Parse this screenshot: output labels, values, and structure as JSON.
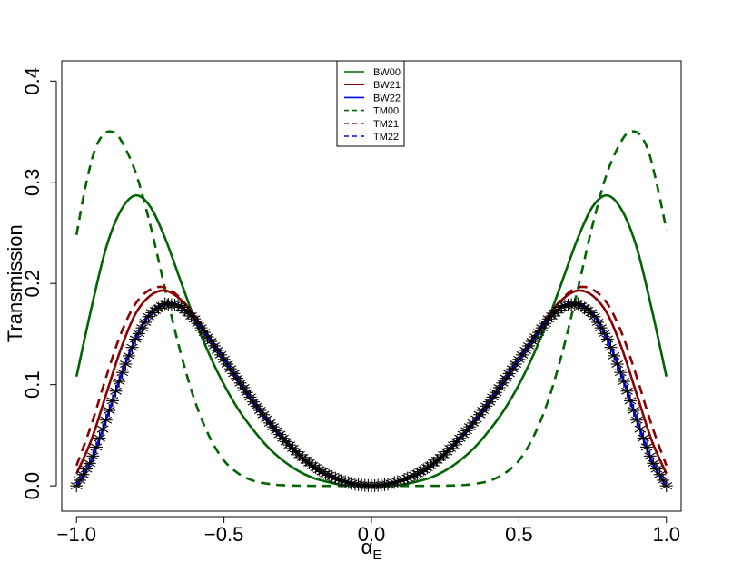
{
  "chart_data": {
    "type": "line",
    "title": "",
    "xlabel": "α",
    "xlabel_subscript": "E",
    "ylabel": "Transmission",
    "xlim": [
      -1.05,
      1.05
    ],
    "ylim": [
      -0.025,
      0.42
    ],
    "x_ticks": [
      -1.0,
      -0.5,
      0.0,
      0.5,
      1.0
    ],
    "x_tick_labels": [
      "−1.0",
      "−0.5",
      "0.0",
      "0.5",
      "1.0"
    ],
    "y_ticks": [
      0.0,
      0.1,
      0.2,
      0.3,
      0.4
    ],
    "y_tick_labels": [
      "0.0",
      "0.1",
      "0.2",
      "0.3",
      "0.4"
    ],
    "grid": false,
    "legend_position": "top-center",
    "x_domain": [
      -1.0,
      1.0
    ],
    "series": [
      {
        "name": "BW00",
        "color": "#006400",
        "dash": "solid",
        "points": [
          [
            -1.0,
            0.108
          ],
          [
            -0.95,
            0.175
          ],
          [
            -0.9,
            0.235
          ],
          [
            -0.85,
            0.272
          ],
          [
            -0.8,
            0.287
          ],
          [
            -0.75,
            0.276
          ],
          [
            -0.7,
            0.245
          ],
          [
            -0.65,
            0.205
          ],
          [
            -0.6,
            0.165
          ],
          [
            -0.55,
            0.13
          ],
          [
            -0.5,
            0.1
          ],
          [
            -0.45,
            0.075
          ],
          [
            -0.4,
            0.055
          ],
          [
            -0.35,
            0.038
          ],
          [
            -0.3,
            0.025
          ],
          [
            -0.25,
            0.015
          ],
          [
            -0.2,
            0.008
          ],
          [
            -0.15,
            0.004
          ],
          [
            -0.1,
            0.001
          ],
          [
            -0.05,
            0.0003
          ],
          [
            0.0,
            0.0
          ],
          [
            0.05,
            0.0003
          ],
          [
            0.1,
            0.001
          ],
          [
            0.15,
            0.004
          ],
          [
            0.2,
            0.008
          ],
          [
            0.25,
            0.015
          ],
          [
            0.3,
            0.025
          ],
          [
            0.35,
            0.038
          ],
          [
            0.4,
            0.055
          ],
          [
            0.45,
            0.075
          ],
          [
            0.5,
            0.1
          ],
          [
            0.55,
            0.13
          ],
          [
            0.6,
            0.165
          ],
          [
            0.65,
            0.205
          ],
          [
            0.7,
            0.245
          ],
          [
            0.75,
            0.276
          ],
          [
            0.8,
            0.287
          ],
          [
            0.85,
            0.272
          ],
          [
            0.9,
            0.235
          ],
          [
            0.95,
            0.175
          ],
          [
            1.0,
            0.108
          ]
        ]
      },
      {
        "name": "BW21",
        "color": "#8B0000",
        "dash": "solid",
        "points": [
          [
            -1.0,
            0.012
          ],
          [
            -0.95,
            0.045
          ],
          [
            -0.9,
            0.09
          ],
          [
            -0.85,
            0.135
          ],
          [
            -0.8,
            0.17
          ],
          [
            -0.75,
            0.188
          ],
          [
            -0.7,
            0.193
          ],
          [
            -0.65,
            0.185
          ],
          [
            -0.6,
            0.168
          ],
          [
            -0.55,
            0.147
          ],
          [
            -0.5,
            0.125
          ],
          [
            -0.45,
            0.103
          ],
          [
            -0.4,
            0.082
          ],
          [
            -0.35,
            0.063
          ],
          [
            -0.3,
            0.046
          ],
          [
            -0.25,
            0.031
          ],
          [
            -0.2,
            0.019
          ],
          [
            -0.15,
            0.01
          ],
          [
            -0.1,
            0.0045
          ],
          [
            -0.05,
            0.001
          ],
          [
            0.0,
            0.0
          ],
          [
            0.05,
            0.001
          ],
          [
            0.1,
            0.0045
          ],
          [
            0.15,
            0.01
          ],
          [
            0.2,
            0.019
          ],
          [
            0.25,
            0.031
          ],
          [
            0.3,
            0.046
          ],
          [
            0.35,
            0.063
          ],
          [
            0.4,
            0.082
          ],
          [
            0.45,
            0.103
          ],
          [
            0.5,
            0.125
          ],
          [
            0.55,
            0.147
          ],
          [
            0.6,
            0.168
          ],
          [
            0.65,
            0.185
          ],
          [
            0.7,
            0.193
          ],
          [
            0.75,
            0.188
          ],
          [
            0.8,
            0.17
          ],
          [
            0.85,
            0.135
          ],
          [
            0.9,
            0.09
          ],
          [
            0.95,
            0.045
          ],
          [
            1.0,
            0.012
          ]
        ]
      },
      {
        "name": "BW22",
        "color": "#0000FF",
        "dash": "solid",
        "points": [
          [
            -1.0,
            0.0
          ],
          [
            -0.95,
            0.025
          ],
          [
            -0.9,
            0.065
          ],
          [
            -0.85,
            0.108
          ],
          [
            -0.8,
            0.145
          ],
          [
            -0.75,
            0.17
          ],
          [
            -0.7,
            0.18
          ],
          [
            -0.65,
            0.178
          ],
          [
            -0.6,
            0.165
          ],
          [
            -0.55,
            0.145
          ],
          [
            -0.5,
            0.125
          ],
          [
            -0.45,
            0.104
          ],
          [
            -0.4,
            0.083
          ],
          [
            -0.35,
            0.064
          ],
          [
            -0.3,
            0.047
          ],
          [
            -0.25,
            0.032
          ],
          [
            -0.2,
            0.02
          ],
          [
            -0.15,
            0.011
          ],
          [
            -0.1,
            0.005
          ],
          [
            -0.05,
            0.0012
          ],
          [
            0.0,
            0.0
          ],
          [
            0.05,
            0.0012
          ],
          [
            0.1,
            0.005
          ],
          [
            0.15,
            0.011
          ],
          [
            0.2,
            0.02
          ],
          [
            0.25,
            0.032
          ],
          [
            0.3,
            0.047
          ],
          [
            0.35,
            0.064
          ],
          [
            0.4,
            0.083
          ],
          [
            0.45,
            0.104
          ],
          [
            0.5,
            0.125
          ],
          [
            0.55,
            0.145
          ],
          [
            0.6,
            0.165
          ],
          [
            0.65,
            0.178
          ],
          [
            0.7,
            0.18
          ],
          [
            0.75,
            0.17
          ],
          [
            0.8,
            0.145
          ],
          [
            0.85,
            0.108
          ],
          [
            0.9,
            0.065
          ],
          [
            0.95,
            0.025
          ],
          [
            1.0,
            0.0
          ]
        ]
      },
      {
        "name": "TM00",
        "color": "#006400",
        "dash": "dashed",
        "points": [
          [
            -1.0,
            0.248
          ],
          [
            -0.97,
            0.295
          ],
          [
            -0.94,
            0.33
          ],
          [
            -0.91,
            0.347
          ],
          [
            -0.88,
            0.35
          ],
          [
            -0.85,
            0.342
          ],
          [
            -0.8,
            0.31
          ],
          [
            -0.75,
            0.258
          ],
          [
            -0.7,
            0.195
          ],
          [
            -0.65,
            0.135
          ],
          [
            -0.6,
            0.085
          ],
          [
            -0.55,
            0.049
          ],
          [
            -0.5,
            0.025
          ],
          [
            -0.45,
            0.012
          ],
          [
            -0.4,
            0.005
          ],
          [
            -0.35,
            0.002
          ],
          [
            -0.3,
            0.0006
          ],
          [
            -0.2,
            0.0
          ],
          [
            0.0,
            0.0
          ],
          [
            0.2,
            0.0
          ],
          [
            0.3,
            0.0006
          ],
          [
            0.35,
            0.002
          ],
          [
            0.4,
            0.005
          ],
          [
            0.45,
            0.012
          ],
          [
            0.5,
            0.025
          ],
          [
            0.55,
            0.049
          ],
          [
            0.6,
            0.085
          ],
          [
            0.65,
            0.135
          ],
          [
            0.7,
            0.195
          ],
          [
            0.75,
            0.258
          ],
          [
            0.8,
            0.31
          ],
          [
            0.85,
            0.342
          ],
          [
            0.88,
            0.35
          ],
          [
            0.91,
            0.347
          ],
          [
            0.94,
            0.33
          ],
          [
            0.97,
            0.295
          ],
          [
            1.0,
            0.253
          ]
        ]
      },
      {
        "name": "TM21",
        "color": "#8B0000",
        "dash": "dashed",
        "points": [
          [
            -1.0,
            0.02
          ],
          [
            -0.95,
            0.06
          ],
          [
            -0.9,
            0.107
          ],
          [
            -0.85,
            0.15
          ],
          [
            -0.8,
            0.18
          ],
          [
            -0.75,
            0.194
          ],
          [
            -0.7,
            0.196
          ],
          [
            -0.65,
            0.186
          ],
          [
            -0.6,
            0.168
          ],
          [
            -0.55,
            0.147
          ],
          [
            -0.5,
            0.125
          ],
          [
            -0.45,
            0.103
          ],
          [
            -0.4,
            0.082
          ],
          [
            -0.35,
            0.063
          ],
          [
            -0.3,
            0.046
          ],
          [
            -0.25,
            0.031
          ],
          [
            -0.2,
            0.019
          ],
          [
            -0.15,
            0.01
          ],
          [
            -0.1,
            0.0045
          ],
          [
            -0.05,
            0.001
          ],
          [
            0.0,
            0.0
          ],
          [
            0.05,
            0.001
          ],
          [
            0.1,
            0.0045
          ],
          [
            0.15,
            0.01
          ],
          [
            0.2,
            0.019
          ],
          [
            0.25,
            0.031
          ],
          [
            0.3,
            0.046
          ],
          [
            0.35,
            0.063
          ],
          [
            0.4,
            0.082
          ],
          [
            0.45,
            0.103
          ],
          [
            0.5,
            0.125
          ],
          [
            0.55,
            0.147
          ],
          [
            0.6,
            0.168
          ],
          [
            0.65,
            0.186
          ],
          [
            0.7,
            0.196
          ],
          [
            0.75,
            0.194
          ],
          [
            0.8,
            0.18
          ],
          [
            0.85,
            0.15
          ],
          [
            0.9,
            0.107
          ],
          [
            0.95,
            0.06
          ],
          [
            1.0,
            0.02
          ]
        ]
      },
      {
        "name": "TM22",
        "color": "#0000FF",
        "dash": "dashed",
        "points": [
          [
            -1.0,
            0.0
          ],
          [
            -0.95,
            0.025
          ],
          [
            -0.9,
            0.065
          ],
          [
            -0.85,
            0.108
          ],
          [
            -0.8,
            0.145
          ],
          [
            -0.75,
            0.17
          ],
          [
            -0.7,
            0.18
          ],
          [
            -0.65,
            0.178
          ],
          [
            -0.6,
            0.165
          ],
          [
            -0.55,
            0.145
          ],
          [
            -0.5,
            0.125
          ],
          [
            -0.45,
            0.104
          ],
          [
            -0.4,
            0.083
          ],
          [
            -0.35,
            0.064
          ],
          [
            -0.3,
            0.047
          ],
          [
            -0.25,
            0.032
          ],
          [
            -0.2,
            0.02
          ],
          [
            -0.15,
            0.011
          ],
          [
            -0.1,
            0.005
          ],
          [
            -0.05,
            0.0012
          ],
          [
            0.0,
            0.0
          ],
          [
            0.05,
            0.0012
          ],
          [
            0.1,
            0.005
          ],
          [
            0.15,
            0.011
          ],
          [
            0.2,
            0.02
          ],
          [
            0.25,
            0.032
          ],
          [
            0.3,
            0.047
          ],
          [
            0.35,
            0.064
          ],
          [
            0.4,
            0.083
          ],
          [
            0.45,
            0.104
          ],
          [
            0.5,
            0.125
          ],
          [
            0.55,
            0.145
          ],
          [
            0.6,
            0.165
          ],
          [
            0.65,
            0.178
          ],
          [
            0.7,
            0.18
          ],
          [
            0.75,
            0.17
          ],
          [
            0.8,
            0.145
          ],
          [
            0.85,
            0.108
          ],
          [
            0.9,
            0.065
          ],
          [
            0.95,
            0.025
          ],
          [
            1.0,
            0.0
          ]
        ]
      }
    ],
    "markers": {
      "symbol": "asterisk",
      "color": "#000000",
      "count": 181,
      "follows_series": "BW22"
    }
  }
}
